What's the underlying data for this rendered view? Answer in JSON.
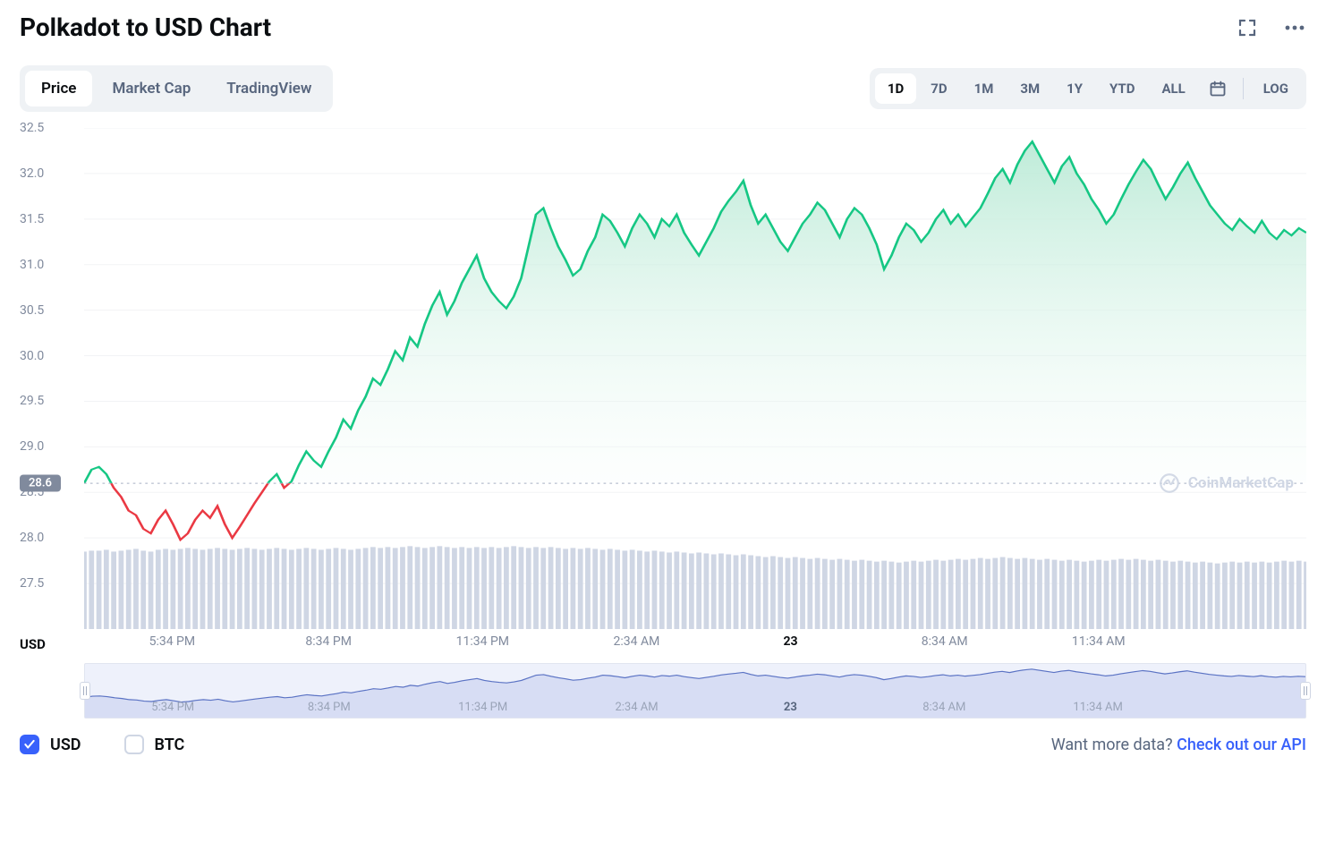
{
  "title": "Polkadot to USD Chart",
  "tabs": {
    "price": "Price",
    "marketcap": "Market Cap",
    "tradingview": "TradingView",
    "active": "price"
  },
  "ranges": {
    "items": [
      "1D",
      "7D",
      "1M",
      "3M",
      "1Y",
      "YTD",
      "ALL"
    ],
    "active": "1D",
    "log": "LOG"
  },
  "chart": {
    "type": "area",
    "ylim": [
      27.0,
      32.5
    ],
    "yticks": [
      27.5,
      28.0,
      28.5,
      29.0,
      29.5,
      30.0,
      30.5,
      31.0,
      31.5,
      32.0,
      32.5
    ],
    "reference": 28.6,
    "line_color_up": "#16c784",
    "line_color_down": "#ea3943",
    "area_color_top": "#b7e9d4",
    "area_color_bottom": "#ffffff",
    "grid_color": "#f2f3f5",
    "ref_line_color": "#a6b0c3",
    "ref_badge_bg": "#808a9d",
    "volume_color": "#cfd6e4",
    "background": "#ffffff",
    "line_width": 2,
    "watermark_text": "CoinMarketCap",
    "watermark_color": "#cfd6e4",
    "x_ticks": [
      {
        "pos": 0.072,
        "label": "5:34 PM",
        "bold": false
      },
      {
        "pos": 0.2,
        "label": "8:34 PM",
        "bold": false
      },
      {
        "pos": 0.326,
        "label": "11:34 PM",
        "bold": false
      },
      {
        "pos": 0.452,
        "label": "2:34 AM",
        "bold": false
      },
      {
        "pos": 0.578,
        "label": "23",
        "bold": true
      },
      {
        "pos": 0.704,
        "label": "8:34 AM",
        "bold": false
      },
      {
        "pos": 0.83,
        "label": "11:34 AM",
        "bold": false
      }
    ],
    "series": [
      28.6,
      28.75,
      28.78,
      28.7,
      28.55,
      28.45,
      28.3,
      28.25,
      28.1,
      28.05,
      28.2,
      28.3,
      28.15,
      27.98,
      28.05,
      28.2,
      28.3,
      28.22,
      28.35,
      28.15,
      28.0,
      28.12,
      28.25,
      28.38,
      28.5,
      28.62,
      28.7,
      28.55,
      28.62,
      28.8,
      28.95,
      28.85,
      28.78,
      28.95,
      29.1,
      29.3,
      29.2,
      29.4,
      29.55,
      29.75,
      29.68,
      29.85,
      30.05,
      29.95,
      30.2,
      30.1,
      30.35,
      30.55,
      30.7,
      30.45,
      30.6,
      30.8,
      30.95,
      31.1,
      30.85,
      30.7,
      30.6,
      30.52,
      30.65,
      30.85,
      31.2,
      31.55,
      31.62,
      31.4,
      31.2,
      31.05,
      30.88,
      30.95,
      31.15,
      31.3,
      31.55,
      31.48,
      31.35,
      31.2,
      31.4,
      31.55,
      31.45,
      31.3,
      31.5,
      31.42,
      31.55,
      31.35,
      31.22,
      31.1,
      31.25,
      31.4,
      31.58,
      31.7,
      31.8,
      31.92,
      31.65,
      31.45,
      31.55,
      31.4,
      31.25,
      31.15,
      31.3,
      31.45,
      31.55,
      31.68,
      31.6,
      31.45,
      31.3,
      31.5,
      31.62,
      31.55,
      31.4,
      31.22,
      30.95,
      31.1,
      31.3,
      31.45,
      31.38,
      31.25,
      31.35,
      31.5,
      31.6,
      31.45,
      31.55,
      31.42,
      31.52,
      31.62,
      31.78,
      31.95,
      32.05,
      31.9,
      32.1,
      32.25,
      32.35,
      32.2,
      32.05,
      31.9,
      32.08,
      32.18,
      32.0,
      31.88,
      31.72,
      31.6,
      31.45,
      31.55,
      31.72,
      31.88,
      32.02,
      32.15,
      32.05,
      31.88,
      31.72,
      31.85,
      32.0,
      32.12,
      31.95,
      31.8,
      31.65,
      31.55,
      31.45,
      31.38,
      31.5,
      31.42,
      31.35,
      31.48,
      31.35,
      31.28,
      31.38,
      31.32,
      31.4,
      31.35
    ],
    "volume": [
      27.85,
      27.86,
      27.86,
      27.87,
      27.85,
      27.86,
      27.87,
      27.88,
      27.86,
      27.85,
      27.87,
      27.88,
      27.87,
      27.88,
      27.89,
      27.88,
      27.87,
      27.88,
      27.89,
      27.88,
      27.87,
      27.88,
      27.89,
      27.88,
      27.87,
      27.88,
      27.89,
      27.88,
      27.87,
      27.88,
      27.89,
      27.88,
      27.87,
      27.88,
      27.89,
      27.88,
      27.87,
      27.88,
      27.89,
      27.9,
      27.89,
      27.9,
      27.89,
      27.9,
      27.91,
      27.9,
      27.89,
      27.9,
      27.91,
      27.9,
      27.89,
      27.9,
      27.89,
      27.9,
      27.89,
      27.9,
      27.89,
      27.9,
      27.91,
      27.9,
      27.89,
      27.9,
      27.89,
      27.9,
      27.89,
      27.88,
      27.89,
      27.88,
      27.89,
      27.88,
      27.87,
      27.88,
      27.87,
      27.86,
      27.87,
      27.86,
      27.85,
      27.86,
      27.85,
      27.84,
      27.85,
      27.84,
      27.83,
      27.84,
      27.83,
      27.82,
      27.83,
      27.82,
      27.81,
      27.82,
      27.81,
      27.8,
      27.79,
      27.8,
      27.79,
      27.78,
      27.79,
      27.78,
      27.77,
      27.78,
      27.77,
      27.76,
      27.77,
      27.76,
      27.75,
      27.76,
      27.75,
      27.74,
      27.75,
      27.74,
      27.73,
      27.74,
      27.75,
      27.74,
      27.75,
      27.76,
      27.75,
      27.76,
      27.77,
      27.76,
      27.77,
      27.78,
      27.77,
      27.78,
      27.79,
      27.78,
      27.77,
      27.78,
      27.77,
      27.76,
      27.77,
      27.76,
      27.75,
      27.76,
      27.75,
      27.74,
      27.75,
      27.76,
      27.75,
      27.76,
      27.77,
      27.76,
      27.77,
      27.76,
      27.75,
      27.76,
      27.75,
      27.74,
      27.75,
      27.74,
      27.73,
      27.74,
      27.73,
      27.72,
      27.73,
      27.74,
      27.73,
      27.74,
      27.73,
      27.74,
      27.73,
      27.74,
      27.75,
      27.74,
      27.75,
      27.74
    ]
  },
  "y_unit": "USD",
  "navigator": {
    "bg": "#eef1fb",
    "line_color": "#5b73c4",
    "fill_color": "#d7ddf4"
  },
  "legend": {
    "usd": {
      "label": "USD",
      "checked": true
    },
    "btc": {
      "label": "BTC",
      "checked": false
    }
  },
  "footer": {
    "prompt": "Want more data? ",
    "link": "Check out our API"
  }
}
